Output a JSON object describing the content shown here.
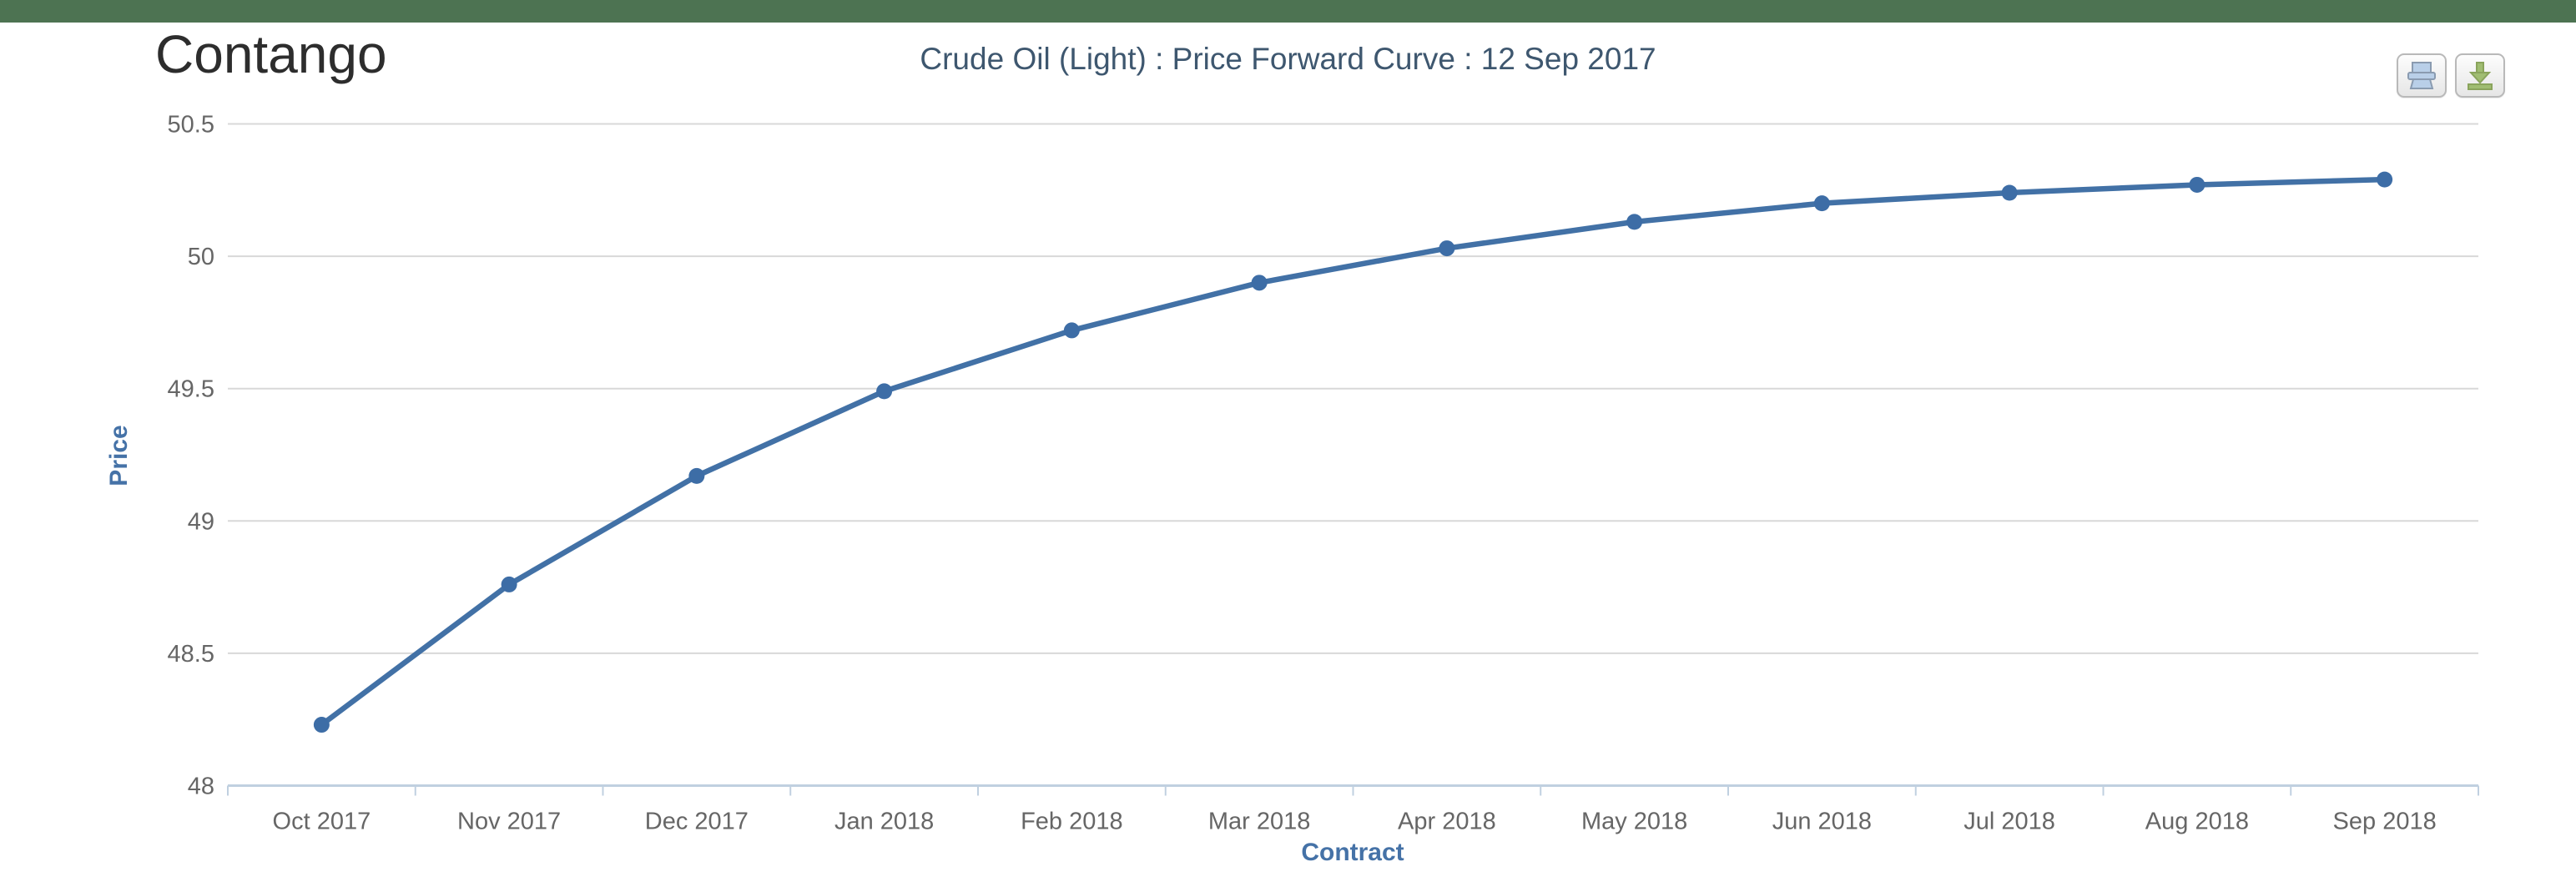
{
  "header": {
    "bar_color": "#4d7352",
    "page_label": "Contango"
  },
  "toolbar": {
    "buttons": [
      {
        "name": "print-chart",
        "icon": "printer-icon"
      },
      {
        "name": "export-chart",
        "icon": "download-icon"
      }
    ]
  },
  "chart_data": {
    "type": "line",
    "title": "Crude Oil (Light) : Price Forward Curve : 12 Sep 2017",
    "xlabel": "Contract",
    "ylabel": "Price",
    "categories": [
      "Oct 2017",
      "Nov 2017",
      "Dec 2017",
      "Jan 2018",
      "Feb 2018",
      "Mar 2018",
      "Apr 2018",
      "May 2018",
      "Jun 2018",
      "Jul 2018",
      "Aug 2018",
      "Sep 2018"
    ],
    "series": [
      {
        "name": "Price",
        "values": [
          48.23,
          48.76,
          49.17,
          49.49,
          49.72,
          49.9,
          50.03,
          50.13,
          50.2,
          50.24,
          50.27,
          50.29
        ]
      }
    ],
    "ylim": [
      48,
      50.5
    ],
    "yticks": [
      48,
      48.5,
      49,
      49.5,
      50,
      50.5
    ],
    "grid": true,
    "legend": "none",
    "marker": "circle",
    "colors": {
      "line": "#4271A6",
      "marker": "#3D6DA6",
      "grid": "#D8D8D8",
      "axis_line": "#C0D0E0",
      "tick_label": "#666666",
      "axis_title": "#4572A7",
      "title": "#3E576F"
    }
  }
}
